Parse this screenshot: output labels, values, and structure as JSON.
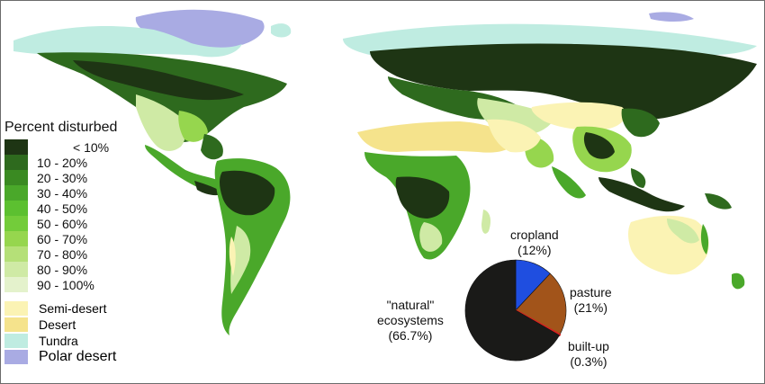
{
  "legend": {
    "title": "Percent disturbed",
    "disturbance_classes": [
      {
        "label": "< 10%",
        "color": "#1e3514"
      },
      {
        "label": "10 - 20%",
        "color": "#2e6a1e"
      },
      {
        "label": "20 - 30%",
        "color": "#3a8a22"
      },
      {
        "label": "30 - 40%",
        "color": "#4aa82a"
      },
      {
        "label": "40 - 50%",
        "color": "#5cc030"
      },
      {
        "label": "50 - 60%",
        "color": "#73cc3a"
      },
      {
        "label": "60 - 70%",
        "color": "#96d64e"
      },
      {
        "label": "70 - 80%",
        "color": "#b5e078"
      },
      {
        "label": "80 - 90%",
        "color": "#cfeaa5"
      },
      {
        "label": "90 - 100%",
        "color": "#e4f2cc"
      }
    ],
    "land_categories": [
      {
        "label": "Semi-desert",
        "color": "#fbf3b4"
      },
      {
        "label": "Desert",
        "color": "#f5e38c"
      },
      {
        "label": "Tundra",
        "color": "#bfece1"
      },
      {
        "label": "Polar desert",
        "color": "#a9abe3"
      }
    ]
  },
  "pie": {
    "slices": [
      {
        "name": "cropland",
        "label": "cropland",
        "value_label": "(12%)",
        "value": 12,
        "color": "#1f4ee0"
      },
      {
        "name": "pasture",
        "label": "pasture",
        "value_label": "(21%)",
        "value": 21,
        "color": "#a2541a"
      },
      {
        "name": "built-up",
        "label": "built-up",
        "value_label": "(0.3%)",
        "value": 0.3,
        "color": "#d82020"
      },
      {
        "name": "natural",
        "label": "\"natural\"",
        "label2": "ecosystems",
        "value_label": "(66.7%)",
        "value": 66.7,
        "color": "#1a1a18"
      }
    ]
  },
  "map_colors": {
    "ocean": "#ffffff",
    "forest_dark": "#1e3514",
    "forest": "#2e6a1e",
    "mixed": "#4aa82a",
    "farmland": "#96d64e",
    "light": "#cfeaa5",
    "semi_desert": "#fbf3b4",
    "desert": "#f5e38c",
    "tundra": "#bfece1",
    "polar_desert": "#a9abe3"
  }
}
